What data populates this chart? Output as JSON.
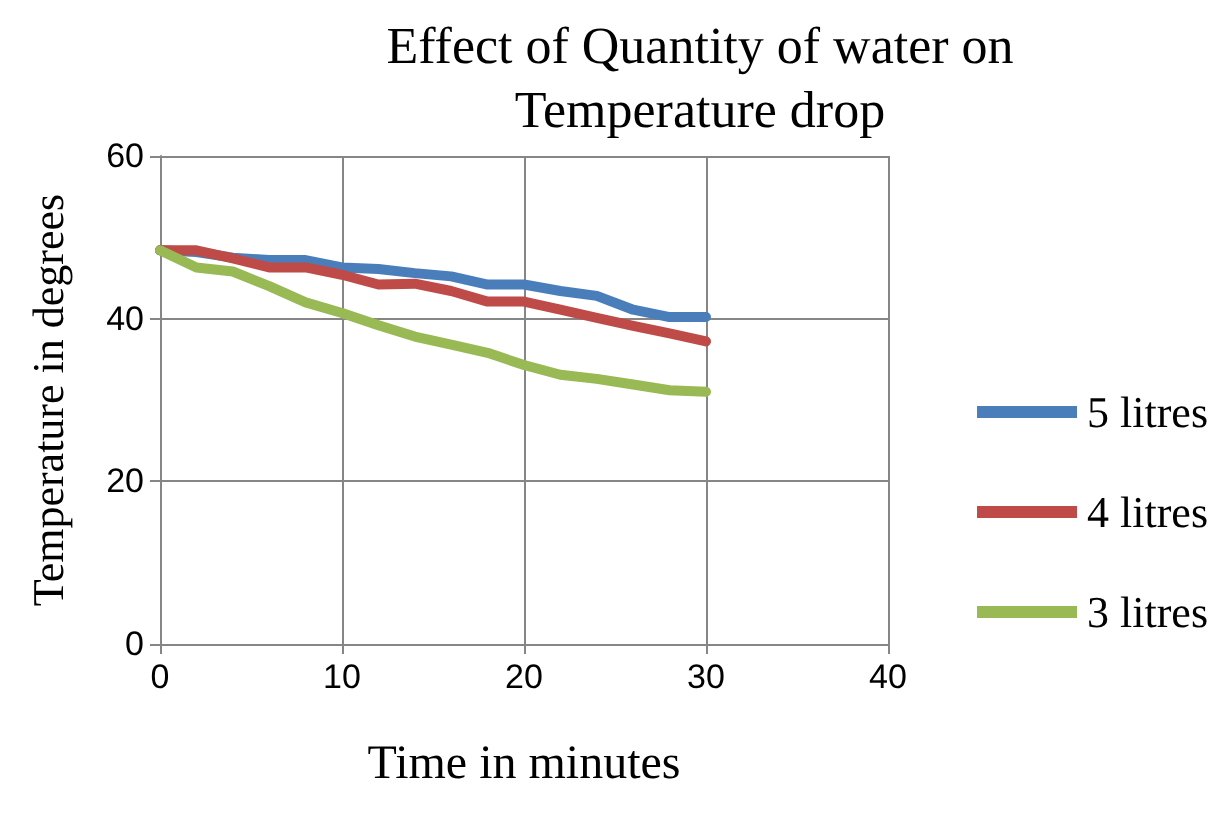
{
  "chart_data": {
    "type": "line",
    "title": "Effect of Quantity of water on\nTemperature drop",
    "xlabel": "Time in minutes",
    "ylabel": "Temperature in degrees",
    "x": [
      0,
      2,
      4,
      6,
      8,
      10,
      12,
      14,
      16,
      18,
      20,
      22,
      24,
      26,
      28,
      30
    ],
    "series": [
      {
        "name": "5 litres",
        "color": "#4a7ebb",
        "values": [
          48.4,
          48.2,
          47.5,
          47.2,
          47.2,
          46.3,
          46.1,
          45.6,
          45.2,
          44.2,
          44.2,
          43.4,
          42.8,
          41.1,
          40.2,
          40.2
        ]
      },
      {
        "name": "4 litres",
        "color": "#be4b48",
        "values": [
          48.4,
          48.4,
          47.4,
          46.3,
          46.3,
          45.4,
          44.2,
          44.3,
          43.4,
          42.1,
          42.1,
          41.1,
          40.1,
          39.1,
          38.2,
          37.2
        ]
      },
      {
        "name": "3 litres",
        "color": "#98b954",
        "values": [
          48.4,
          46.3,
          45.8,
          44.0,
          42.0,
          40.7,
          39.2,
          37.8,
          36.8,
          35.8,
          34.3,
          33.1,
          32.6,
          31.9,
          31.2,
          31.0
        ]
      }
    ],
    "xlim": [
      0,
      40
    ],
    "xticks": [
      0,
      10,
      20,
      30,
      40
    ],
    "ylim": [
      0,
      60
    ],
    "yticks": [
      0,
      20,
      40,
      60
    ],
    "grid": true,
    "legend": "right",
    "marker": "none",
    "line_style": "solid"
  }
}
